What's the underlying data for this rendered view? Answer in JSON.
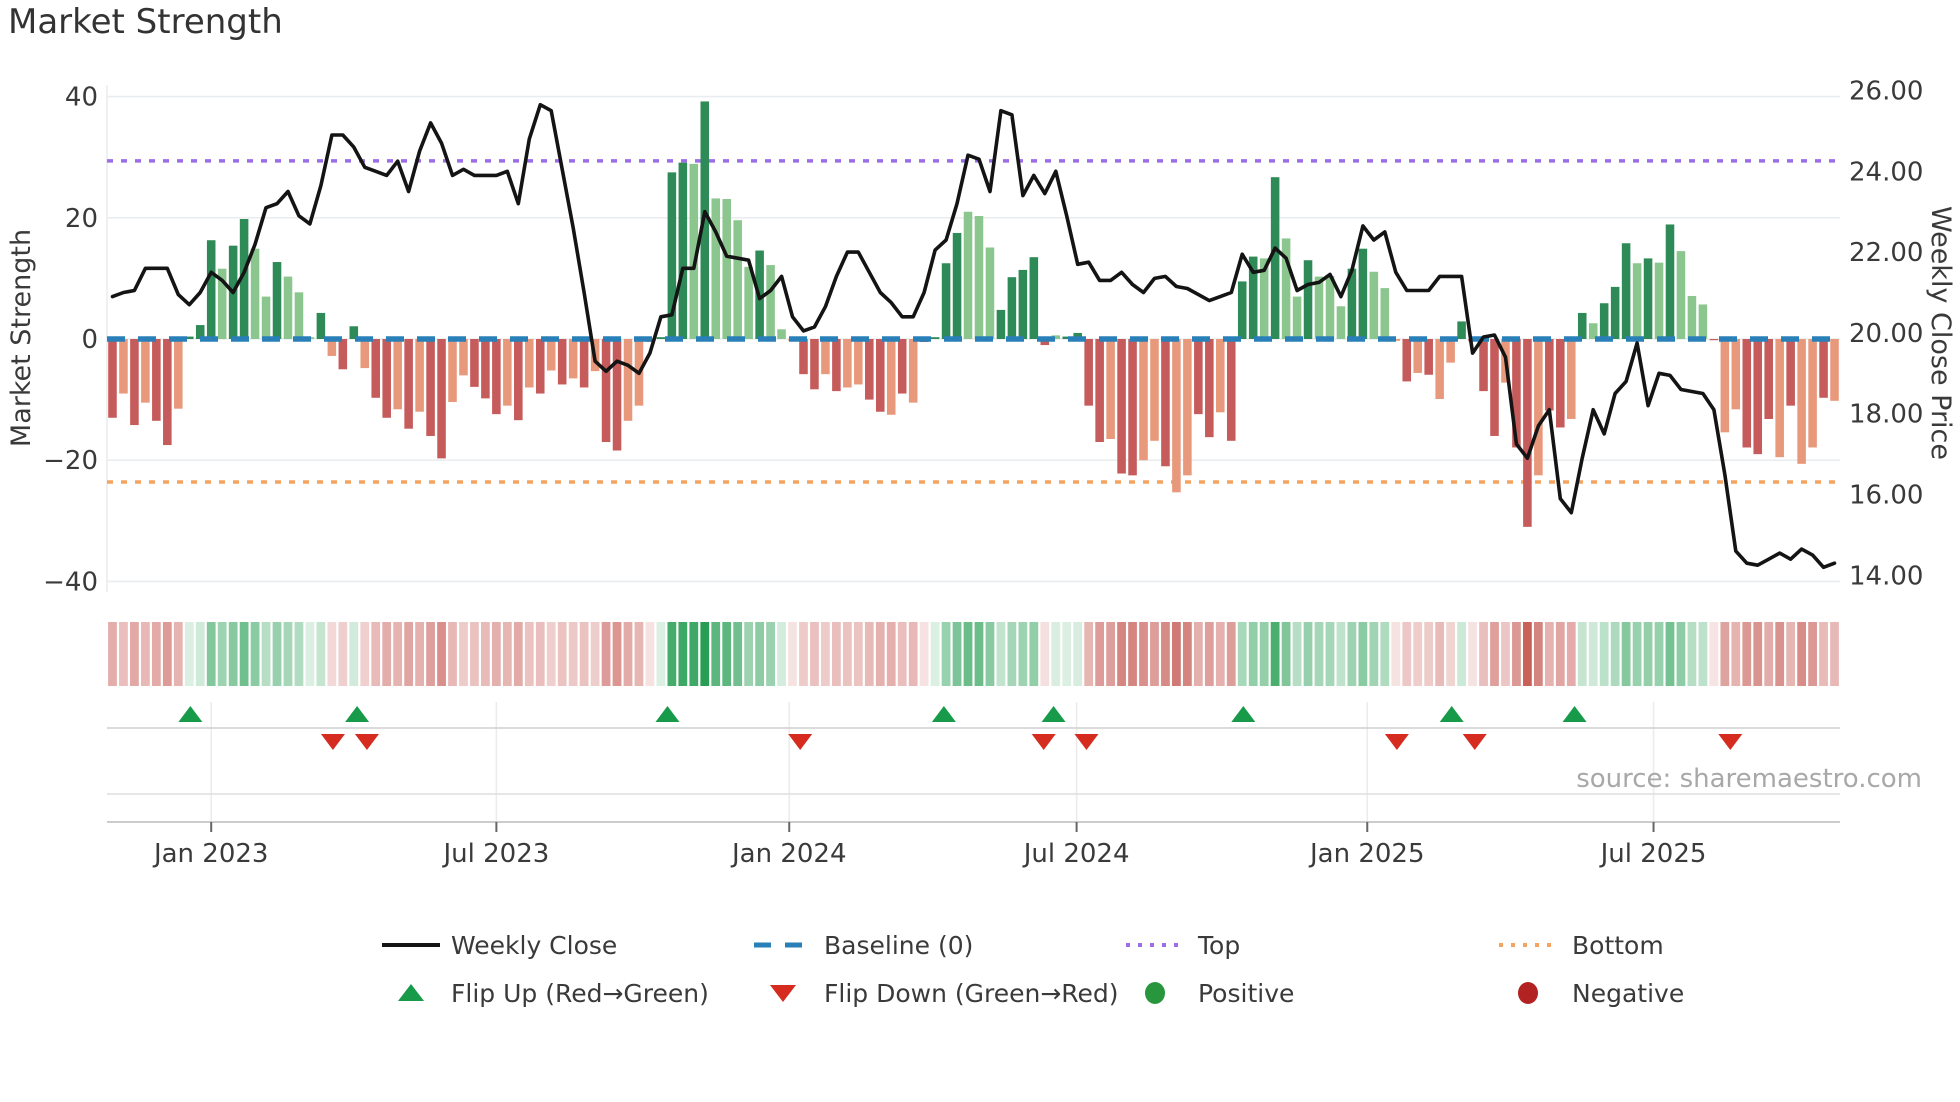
{
  "title": "Market Strength",
  "source": {
    "text": "source: sharemaestro.com"
  },
  "colors": {
    "bar_pos_dark": "#2e8b57",
    "bar_pos_light": "#8cc68f",
    "bar_neg_dark": "#c65b5b",
    "bar_neg_light": "#e8997c",
    "price_line": "#141414",
    "baseline": "#2980b9",
    "top_line": "#9b6ee8",
    "bottom_line": "#f4a460",
    "flip_up": "#179a49",
    "flip_down": "#d62b1f",
    "positive_dot": "#27963c",
    "negative_dot": "#b22222",
    "grid": "#e9edf0",
    "band_line": "#cfcfcf",
    "band_line_light": "#dedede",
    "axis_line": "#c4c4c4",
    "tick_text": "#3a3a3a",
    "heat_pos_rgb": "40,158,84",
    "heat_neg_rgb": "198,88,82"
  },
  "legend": {
    "rows": [
      [
        {
          "type": "line",
          "color_key": "price_line",
          "label": "Weekly Close",
          "name": "weekly-close"
        },
        {
          "type": "dashes",
          "color_key": "baseline",
          "label": "Baseline (0)",
          "name": "baseline"
        },
        {
          "type": "dots",
          "color_key": "top_line",
          "label": "Top",
          "name": "top"
        },
        {
          "type": "dots",
          "color_key": "bottom_line",
          "label": "Bottom",
          "name": "bottom"
        }
      ],
      [
        {
          "type": "tri-up",
          "color_key": "flip_up",
          "label": "Flip Up (Red→Green)",
          "name": "flip-up"
        },
        {
          "type": "tri-down",
          "color_key": "flip_down",
          "label": "Flip Down (Green→Red)",
          "name": "flip-down"
        },
        {
          "type": "dot",
          "color_key": "positive_dot",
          "label": "Positive",
          "name": "positive"
        },
        {
          "type": "dot",
          "color_key": "negative_dot",
          "label": "Negative",
          "name": "negative"
        }
      ]
    ]
  },
  "chart_data": {
    "type": "combo",
    "subtypes": [
      "bar",
      "line",
      "heatmap",
      "marker-rows"
    ],
    "weeks": 158,
    "x_range": "weekly, Nov 2022 - Nov 2025",
    "x_tick_labels": [
      "Jan 2023",
      "Jul 2023",
      "Jan 2024",
      "Jul 2024",
      "Jan 2025",
      "Jul 2025"
    ],
    "x_tick_weeks": [
      9,
      35,
      61.7,
      87.9,
      114.4,
      140.5
    ],
    "left_axis": {
      "label": "Market Strength",
      "tick_values": [
        40,
        20,
        0,
        -20,
        -40
      ],
      "tick_labels": [
        "40",
        "20",
        "0",
        "−20",
        "−40"
      ],
      "lim": [
        -46,
        43
      ]
    },
    "right_axis": {
      "label": "Weekly Close Price",
      "tick_values": [
        26,
        24,
        22,
        20,
        18,
        16,
        14
      ],
      "tick_labels": [
        "26.00",
        "24.00",
        "22.00",
        "20.00",
        "18.00",
        "16.00",
        "14.00"
      ],
      "lim": [
        13.2,
        26.9
      ]
    },
    "baseline": 0,
    "top_level": 29.4,
    "bottom_level": -23.6,
    "strength": [
      -13,
      -9,
      -14.2,
      -10.5,
      -13.5,
      -17.5,
      -11.5,
      0.4,
      2.3,
      16.3,
      11.6,
      15.4,
      19.8,
      14.9,
      7,
      12.7,
      10.3,
      7.7,
      0.3,
      4.3,
      -2.8,
      -5,
      2.1,
      -4.8,
      -9.7,
      -13,
      -11.6,
      -14.8,
      -12,
      -16,
      -19.7,
      -10.4,
      -6,
      -7.9,
      -9.8,
      -12.4,
      -11,
      -13.4,
      -8,
      -9,
      -5.2,
      -7.5,
      -6.5,
      -8,
      -5.3,
      -17,
      -18.4,
      -13.5,
      -11,
      -0.5,
      0.3,
      27.5,
      29.1,
      28.9,
      39.2,
      23.2,
      23.1,
      19.6,
      11.9,
      14.6,
      12.2,
      1.6,
      -0.3,
      -5.8,
      -8.3,
      -5.8,
      -8.6,
      -8,
      -7.5,
      -10,
      -12,
      -12.5,
      -9,
      -10.5,
      -0.5,
      0.3,
      12.5,
      17.5,
      21,
      20.3,
      15.1,
      4.8,
      10.2,
      11.4,
      13.5,
      -1,
      0.6,
      0.4,
      1,
      -11,
      -17,
      -16.5,
      -22.2,
      -22.5,
      -20,
      -16.8,
      -21,
      -25.3,
      -22.5,
      -12.4,
      -16.2,
      -12.1,
      -16.8,
      9.5,
      13.6,
      13.3,
      26.7,
      16.6,
      7,
      13,
      10.3,
      10.4,
      5.4,
      11.6,
      14.9,
      11.1,
      8.4,
      -0.3,
      -7,
      -5.6,
      -5.9,
      -9.9,
      -3.9,
      2.9,
      -0.4,
      -8.6,
      -16,
      -7.2,
      -17.9,
      -31,
      -22.5,
      -11.8,
      -14.6,
      -13.2,
      4.3,
      2.6,
      5.9,
      8.6,
      15.8,
      12.5,
      13.3,
      12.6,
      18.9,
      14.5,
      7.1,
      5.7,
      -0.2,
      -15.4,
      -11.6,
      -17.9,
      -19,
      -13.2,
      -19.5,
      -11,
      -20.6,
      -17.9,
      -9.7,
      -10.2
    ],
    "strength_shade": "dldlddldddlddlldllldlddlddldlddlldddldldldldlddllldddldlllldlllddldllddldlddddllldddddlddddlddlldllddldddldlldlllddllldldllddddlddlddldldddldldllldlldddldlld",
    "price": [
      20.9,
      21.0,
      21.05,
      21.6,
      21.6,
      21.6,
      20.95,
      20.7,
      21.0,
      21.5,
      21.3,
      21.0,
      21.5,
      22.2,
      23.1,
      23.2,
      23.5,
      22.9,
      22.7,
      23.65,
      24.9,
      24.9,
      24.6,
      24.1,
      24.0,
      23.9,
      24.25,
      23.5,
      24.5,
      25.2,
      24.7,
      23.9,
      24.05,
      23.9,
      23.9,
      23.9,
      24.0,
      23.2,
      24.8,
      25.65,
      25.5,
      24.05,
      22.6,
      21.0,
      19.3,
      19.05,
      19.3,
      19.2,
      19.0,
      19.5,
      20.4,
      20.45,
      21.6,
      21.6,
      23.0,
      22.5,
      21.9,
      21.85,
      21.8,
      20.85,
      21.05,
      21.4,
      20.4,
      20.05,
      20.15,
      20.65,
      21.4,
      22.0,
      22.0,
      21.5,
      21.0,
      20.75,
      20.4,
      20.4,
      21.0,
      22.05,
      22.3,
      23.2,
      24.4,
      24.3,
      23.5,
      25.5,
      25.4,
      23.4,
      23.9,
      23.45,
      24.0,
      22.9,
      21.7,
      21.75,
      21.3,
      21.3,
      21.5,
      21.2,
      21.0,
      21.35,
      21.4,
      21.15,
      21.1,
      20.95,
      20.8,
      20.9,
      21.0,
      21.95,
      21.5,
      21.55,
      22.1,
      21.85,
      21.05,
      21.2,
      21.25,
      21.45,
      20.9,
      21.55,
      22.65,
      22.3,
      22.5,
      21.5,
      21.05,
      21.05,
      21.05,
      21.4,
      21.4,
      21.4,
      19.5,
      19.9,
      19.95,
      19.4,
      17.25,
      16.9,
      17.7,
      18.1,
      15.9,
      15.55,
      16.9,
      18.1,
      17.5,
      18.5,
      18.8,
      19.75,
      18.2,
      19.0,
      18.95,
      18.6,
      18.55,
      18.5,
      18.1,
      16.5,
      14.6,
      14.3,
      14.25,
      14.4,
      14.55,
      14.4,
      14.65,
      14.5,
      14.2,
      14.3
    ],
    "flip_up_weeks": [
      7.1,
      22.3,
      50.6,
      75.8,
      85.8,
      103.1,
      122.1,
      133.3
    ],
    "flip_down_weeks": [
      20.1,
      23.2,
      62.7,
      84.9,
      88.8,
      117.1,
      124.2,
      147.5
    ],
    "heatmap_note": "heat strip cell colors derived from weekly strength values",
    "grid": "horizontal only in main panel",
    "legend_position": "bottom center, 2 rows x 4 columns"
  }
}
